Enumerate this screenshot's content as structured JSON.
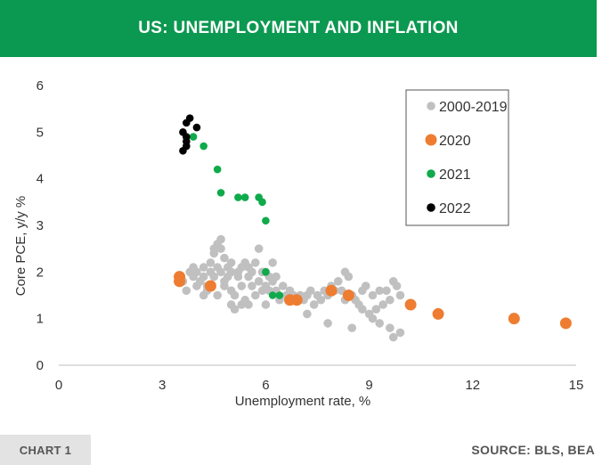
{
  "header": {
    "title": "US: UNEMPLOYMENT AND INFLATION"
  },
  "footer": {
    "chart_label": "CHART 1",
    "source": "SOURCE: BLS, BEA"
  },
  "colors": {
    "header_bg": "#0b9850",
    "s2000": "#c0c0c0",
    "s2020": "#ee7d31",
    "s2021": "#0faa4b",
    "s2022": "#000000"
  },
  "chart_data": {
    "type": "scatter",
    "title": "US: UNEMPLOYMENT AND INFLATION",
    "xlabel": "Unemployment rate, %",
    "ylabel": "Core PCE, y/y %",
    "xlim": [
      0,
      15
    ],
    "ylim": [
      0,
      6
    ],
    "xticks": [
      0,
      3,
      6,
      9,
      12,
      15
    ],
    "yticks": [
      0,
      1,
      2,
      3,
      4,
      5,
      6
    ],
    "grid": false,
    "legend_position": "top-right",
    "series": [
      {
        "name": "2000-2019",
        "color": "#c0c0c0",
        "points": [
          [
            3.6,
            1.8
          ],
          [
            3.7,
            1.6
          ],
          [
            3.8,
            2.0
          ],
          [
            3.9,
            2.1
          ],
          [
            3.9,
            1.9
          ],
          [
            4.0,
            1.7
          ],
          [
            4.0,
            2.0
          ],
          [
            4.1,
            1.8
          ],
          [
            4.2,
            1.9
          ],
          [
            4.2,
            2.1
          ],
          [
            4.3,
            1.7
          ],
          [
            4.3,
            1.6
          ],
          [
            4.4,
            2.0
          ],
          [
            4.4,
            2.2
          ],
          [
            4.5,
            1.9
          ],
          [
            4.5,
            2.4
          ],
          [
            4.5,
            2.5
          ],
          [
            4.6,
            2.6
          ],
          [
            4.6,
            2.1
          ],
          [
            4.7,
            2.5
          ],
          [
            4.7,
            2.7
          ],
          [
            4.7,
            2.0
          ],
          [
            4.8,
            2.3
          ],
          [
            4.8,
            1.8
          ],
          [
            4.9,
            2.1
          ],
          [
            4.9,
            1.9
          ],
          [
            5.0,
            2.2
          ],
          [
            5.0,
            2.0
          ],
          [
            5.0,
            1.3
          ],
          [
            5.1,
            1.2
          ],
          [
            5.1,
            1.5
          ],
          [
            5.2,
            2.0
          ],
          [
            5.2,
            1.9
          ],
          [
            5.3,
            2.1
          ],
          [
            5.3,
            1.7
          ],
          [
            5.3,
            1.3
          ],
          [
            5.4,
            1.4
          ],
          [
            5.4,
            2.2
          ],
          [
            5.5,
            2.1
          ],
          [
            5.5,
            1.9
          ],
          [
            5.6,
            2.0
          ],
          [
            5.6,
            1.7
          ],
          [
            5.7,
            2.2
          ],
          [
            5.7,
            1.5
          ],
          [
            5.8,
            1.8
          ],
          [
            5.8,
            2.5
          ],
          [
            5.9,
            2.0
          ],
          [
            5.9,
            1.6
          ],
          [
            6.0,
            2.0
          ],
          [
            6.0,
            1.7
          ],
          [
            6.1,
            1.9
          ],
          [
            6.1,
            1.6
          ],
          [
            6.2,
            2.2
          ],
          [
            6.2,
            1.8
          ],
          [
            6.3,
            1.6
          ],
          [
            6.3,
            1.9
          ],
          [
            6.4,
            1.4
          ],
          [
            6.5,
            1.7
          ],
          [
            6.6,
            1.5
          ],
          [
            6.7,
            1.6
          ],
          [
            6.8,
            1.5
          ],
          [
            6.9,
            1.4
          ],
          [
            7.0,
            1.5
          ],
          [
            7.1,
            1.4
          ],
          [
            7.2,
            1.5
          ],
          [
            7.3,
            1.6
          ],
          [
            7.4,
            1.3
          ],
          [
            7.5,
            1.5
          ],
          [
            7.6,
            1.4
          ],
          [
            7.7,
            1.6
          ],
          [
            7.8,
            1.5
          ],
          [
            7.9,
            1.7
          ],
          [
            8.0,
            1.6
          ],
          [
            8.1,
            1.8
          ],
          [
            8.2,
            1.6
          ],
          [
            8.3,
            2.0
          ],
          [
            8.3,
            1.4
          ],
          [
            8.4,
            1.9
          ],
          [
            8.5,
            1.5
          ],
          [
            8.6,
            1.4
          ],
          [
            8.7,
            1.3
          ],
          [
            8.8,
            1.6
          ],
          [
            8.8,
            1.2
          ],
          [
            8.9,
            1.7
          ],
          [
            9.0,
            1.1
          ],
          [
            9.1,
            1.0
          ],
          [
            9.1,
            1.5
          ],
          [
            9.2,
            1.2
          ],
          [
            9.3,
            0.9
          ],
          [
            9.3,
            1.6
          ],
          [
            9.4,
            1.3
          ],
          [
            9.5,
            1.6
          ],
          [
            9.6,
            1.4
          ],
          [
            9.7,
            1.8
          ],
          [
            9.8,
            1.7
          ],
          [
            9.9,
            1.5
          ],
          [
            9.6,
            0.8
          ],
          [
            9.7,
            0.6
          ],
          [
            9.9,
            0.7
          ],
          [
            8.5,
            0.8
          ],
          [
            7.8,
            0.9
          ],
          [
            7.2,
            1.1
          ],
          [
            4.8,
            1.7
          ],
          [
            4.6,
            1.5
          ],
          [
            4.2,
            1.5
          ],
          [
            5.0,
            1.6
          ],
          [
            5.5,
            1.3
          ],
          [
            6.0,
            1.3
          ]
        ]
      },
      {
        "name": "2020",
        "color": "#ee7d31",
        "points": [
          [
            3.5,
            1.9
          ],
          [
            3.5,
            1.8
          ],
          [
            4.4,
            1.7
          ],
          [
            6.7,
            1.4
          ],
          [
            6.9,
            1.4
          ],
          [
            7.9,
            1.6
          ],
          [
            8.4,
            1.5
          ],
          [
            10.2,
            1.3
          ],
          [
            11.0,
            1.1
          ],
          [
            13.2,
            1.0
          ],
          [
            14.7,
            0.9
          ]
        ]
      },
      {
        "name": "2021",
        "color": "#0faa4b",
        "points": [
          [
            6.2,
            1.5
          ],
          [
            6.4,
            1.5
          ],
          [
            6.0,
            2.0
          ],
          [
            6.0,
            3.1
          ],
          [
            5.9,
            3.5
          ],
          [
            5.8,
            3.6
          ],
          [
            5.4,
            3.6
          ],
          [
            5.2,
            3.6
          ],
          [
            4.7,
            3.7
          ],
          [
            4.6,
            4.2
          ],
          [
            4.2,
            4.7
          ],
          [
            3.9,
            4.9
          ]
        ]
      },
      {
        "name": "2022",
        "color": "#000000",
        "points": [
          [
            3.6,
            4.6
          ],
          [
            3.7,
            4.7
          ],
          [
            3.7,
            4.8
          ],
          [
            3.7,
            4.9
          ],
          [
            3.6,
            5.0
          ],
          [
            3.7,
            5.2
          ],
          [
            3.8,
            5.3
          ],
          [
            4.0,
            5.1
          ]
        ]
      }
    ]
  }
}
